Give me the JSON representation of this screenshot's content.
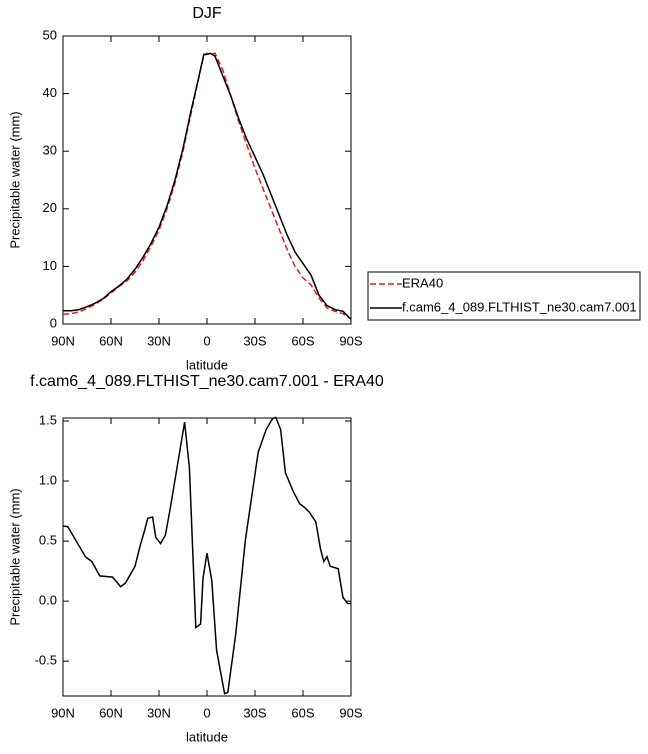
{
  "chart_data": [
    {
      "type": "line",
      "title": "DJF",
      "xlabel": "latitude",
      "ylabel": "Precipitable water (mm)",
      "x": [
        90,
        85,
        80,
        75,
        70,
        65,
        60,
        55,
        50,
        45,
        40,
        35,
        30,
        25,
        20,
        15,
        10,
        5,
        2,
        0,
        -2,
        -5,
        -10,
        -15,
        -20,
        -25,
        -30,
        -35,
        -40,
        -45,
        -50,
        -55,
        -60,
        -65,
        -70,
        -75,
        -80,
        -85,
        -90
      ],
      "series": [
        {
          "name": "ERA40",
          "color": "#e41a1c",
          "dashed": true,
          "values": [
            1.7,
            1.8,
            2.1,
            2.7,
            3.4,
            4.3,
            5.4,
            6.5,
            7.5,
            9,
            11,
            13.5,
            16.3,
            20,
            24.5,
            30,
            36.5,
            43,
            46.6,
            47,
            46.8,
            47,
            44,
            39.5,
            35,
            31,
            27,
            23.5,
            20,
            16.5,
            13,
            10,
            8,
            6.8,
            4.5,
            2.8,
            2.2,
            1.8,
            0.9
          ]
        },
        {
          "name": "f.cam6_4_089.FLTHIST_ne30.cam7.001",
          "color": "#000000",
          "dashed": false,
          "values": [
            2.3,
            2.3,
            2.5,
            3,
            3.6,
            4.4,
            5.6,
            6.6,
            7.8,
            9.5,
            11.6,
            14,
            16.8,
            20.5,
            25,
            30.5,
            37,
            43,
            46.8,
            46.8,
            47,
            46.5,
            43,
            39.5,
            35.5,
            32,
            29,
            26,
            22.5,
            19,
            15.5,
            12.5,
            10.5,
            8.5,
            5,
            3.2,
            2.5,
            2.2,
            0.8
          ]
        }
      ],
      "xlim": [
        90,
        -90
      ],
      "xticks": [
        {
          "value": 90,
          "label": "90N"
        },
        {
          "value": 60,
          "label": "60N"
        },
        {
          "value": 30,
          "label": "30N"
        },
        0,
        {
          "value": -30,
          "label": "30S"
        },
        {
          "value": -60,
          "label": "60S"
        },
        {
          "value": -90,
          "label": "90S"
        }
      ],
      "ylim": [
        0,
        50
      ],
      "yticks": [
        0,
        10,
        20,
        30,
        40,
        50
      ],
      "legend": "right"
    },
    {
      "type": "line",
      "title": "f.cam6_4_089.FLTHIST_ne30.cam7.001 - ERA40",
      "xlabel": "latitude",
      "ylabel": "Precipitable water (mm)",
      "x": [
        90,
        87,
        76,
        72,
        67,
        59,
        54,
        51,
        45,
        42,
        39,
        37,
        34,
        32,
        29,
        26,
        23,
        19,
        14,
        11,
        7,
        4,
        2.5,
        0,
        -3,
        -6,
        -11,
        -13,
        -18,
        -24,
        -32,
        -37,
        -41,
        -43,
        -46,
        -49,
        -54,
        -58,
        -61,
        -64,
        -68,
        -71,
        -73,
        -75,
        -77,
        -82,
        -85,
        -88,
        -90
      ],
      "values": [
        0.625,
        0.62,
        0.37,
        0.33,
        0.21,
        0.2,
        0.12,
        0.15,
        0.29,
        0.45,
        0.59,
        0.69,
        0.7,
        0.53,
        0.48,
        0.55,
        0.77,
        1.09,
        1.49,
        1.11,
        -0.22,
        -0.19,
        0.19,
        0.4,
        0.17,
        -0.41,
        -0.77,
        -0.76,
        -0.27,
        0.51,
        1.24,
        1.43,
        1.52,
        1.53,
        1.43,
        1.07,
        0.91,
        0.81,
        0.78,
        0.74,
        0.66,
        0.43,
        0.33,
        0.37,
        0.29,
        0.27,
        0.03,
        -0.02,
        -0.02
      ],
      "color": "#000000",
      "xlim": [
        90,
        -90
      ],
      "xticks": [
        {
          "value": 90,
          "label": "90N"
        },
        {
          "value": 60,
          "label": "60N"
        },
        {
          "value": 30,
          "label": "30N"
        },
        0,
        {
          "value": -30,
          "label": "30S"
        },
        {
          "value": -60,
          "label": "60S"
        },
        {
          "value": -90,
          "label": "90S"
        }
      ],
      "ylim": [
        -0.79,
        1.525
      ],
      "yticks": [
        -0.5,
        0.0,
        0.5,
        1.0,
        1.5
      ]
    }
  ]
}
